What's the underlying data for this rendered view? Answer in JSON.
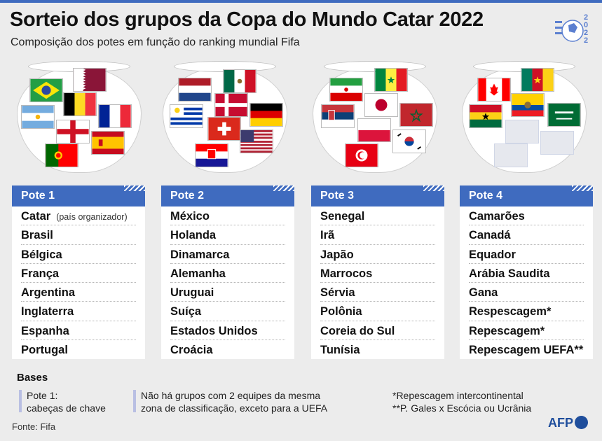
{
  "title": "Sorteio dos grupos da Copa do Mundo Catar 2022",
  "subtitle": "Composição dos potes em função do ranking mundial Fifa",
  "pots": [
    {
      "label": "Pote 1",
      "teams": [
        "Catar",
        "Brasil",
        "Bélgica",
        "França",
        "Argentina",
        "Inglaterra",
        "Espanha",
        "Portugal"
      ],
      "note": "(país organizador)"
    },
    {
      "label": "Pote 2",
      "teams": [
        "México",
        "Holanda",
        "Dinamarca",
        "Alemanha",
        "Uruguai",
        "Suíça",
        "Estados Unidos",
        "Croácia"
      ]
    },
    {
      "label": "Pote 3",
      "teams": [
        "Senegal",
        "Irã",
        "Japão",
        "Marrocos",
        "Sérvia",
        "Polônia",
        "Coreia do Sul",
        "Tunísia"
      ]
    },
    {
      "label": "Pote 4",
      "teams": [
        "Camarões",
        "Canadá",
        "Equador",
        "Arábia Saudita",
        "Gana",
        "Respescagem*",
        "Repescagem*",
        "Repescagem UEFA**"
      ]
    }
  ],
  "bases": {
    "title": "Bases",
    "item1_line1": "Pote 1:",
    "item1_line2": "cabeças de chave",
    "item2_line1": "Não há grupos com 2 equipes da mesma",
    "item2_line2": "zona de classificação, exceto para a UEFA"
  },
  "footnotes": {
    "line1": "*Repescagem intercontinental",
    "line2": "**P. Gales x Escócia ou Ucrânia"
  },
  "source": "Fonte: Fifa",
  "credit": "AFP",
  "colors": {
    "accent": "#3f6bbf",
    "legend_bar": "#b9bfe3",
    "background": "#ececec"
  }
}
